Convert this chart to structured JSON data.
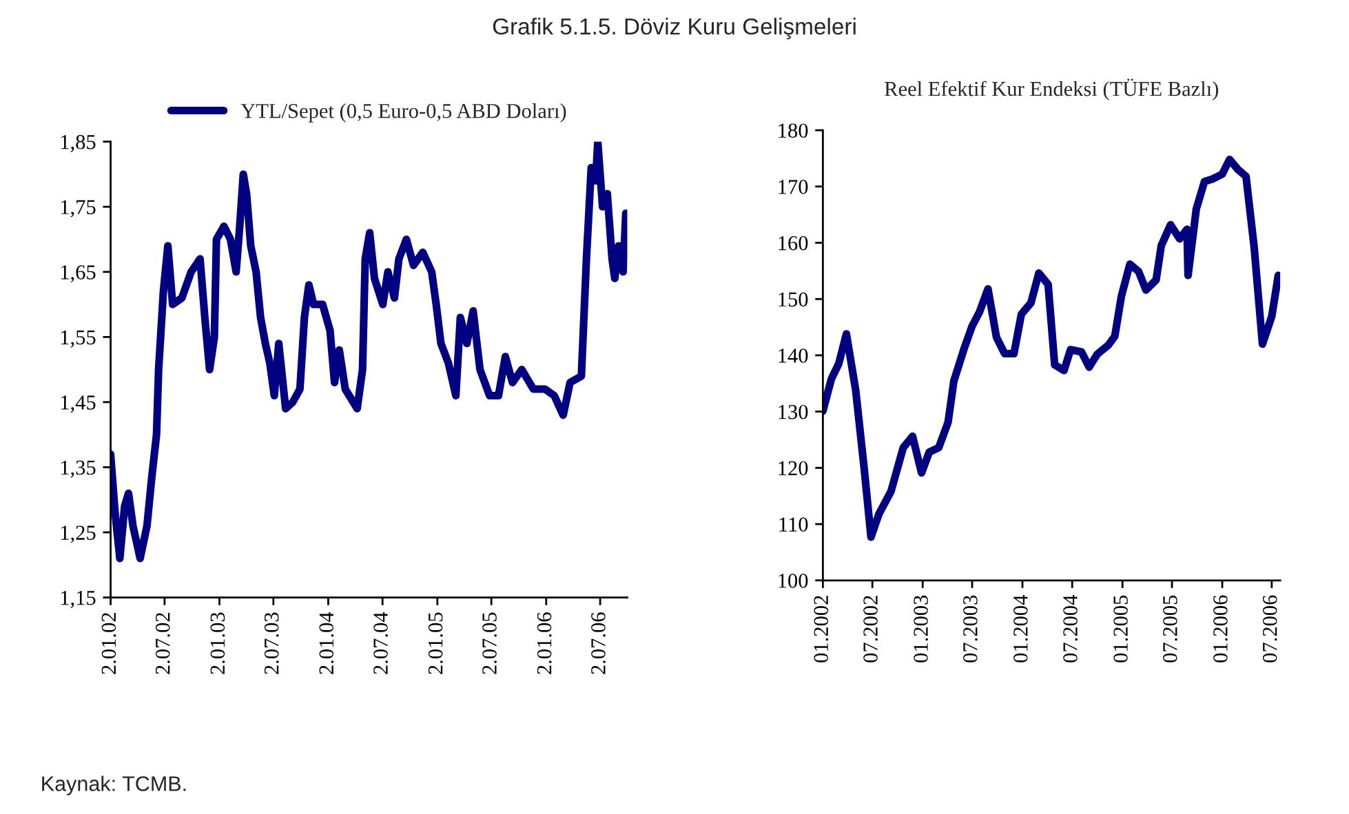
{
  "chart_data": [
    {
      "type": "line",
      "title": "Grafik 5.1.5. Döviz Kuru Gelişmeleri",
      "annotations": [
        "Kaynak: TCMB."
      ],
      "legend": "top",
      "grid": false,
      "marker": "none",
      "line_style": "solid",
      "xlim": [
        "2002-01-02",
        "2006-10-01"
      ],
      "ylim": [
        1.15,
        1.85
      ],
      "xticks": [
        {
          "value": "2002-01-02",
          "label": "2.01.02"
        },
        {
          "value": "2002-07-02",
          "label": "2.07.02"
        },
        {
          "value": "2003-01-02",
          "label": "2.01.03"
        },
        {
          "value": "2003-07-02",
          "label": "2.07.03"
        },
        {
          "value": "2004-01-02",
          "label": "2.01.04"
        },
        {
          "value": "2004-07-02",
          "label": "2.07.04"
        },
        {
          "value": "2005-01-02",
          "label": "2.01.05"
        },
        {
          "value": "2005-07-02",
          "label": "2.07.05"
        },
        {
          "value": "2006-01-02",
          "label": "2.01.06"
        },
        {
          "value": "2006-07-02",
          "label": "2.07.06"
        }
      ],
      "yticks": [
        {
          "value": 1.15,
          "label": "1,15"
        },
        {
          "value": 1.25,
          "label": "1,25"
        },
        {
          "value": 1.35,
          "label": "1,35"
        },
        {
          "value": 1.45,
          "label": "1,45"
        },
        {
          "value": 1.55,
          "label": "1,55"
        },
        {
          "value": 1.65,
          "label": "1,65"
        },
        {
          "value": 1.75,
          "label": "1,75"
        },
        {
          "value": 1.85,
          "label": "1,85"
        }
      ],
      "series": [
        {
          "name": "YTL/Sepet (0,5 Euro-0,5 ABD Doları)",
          "color": "#000080",
          "x": [
            "2002-01-02",
            "2002-01-17",
            "2002-02-02",
            "2002-02-18",
            "2002-03-03",
            "2002-03-18",
            "2002-04-11",
            "2002-05-04",
            "2002-05-19",
            "2002-06-05",
            "2002-06-12",
            "2002-06-28",
            "2002-07-13",
            "2002-07-29",
            "2002-08-29",
            "2002-09-29",
            "2002-10-29",
            "2002-11-14",
            "2002-11-30",
            "2002-12-16",
            "2002-12-23",
            "2003-01-17",
            "2003-02-08",
            "2003-02-27",
            "2003-03-11",
            "2003-03-23",
            "2003-04-03",
            "2003-04-17",
            "2003-05-05",
            "2003-05-20",
            "2003-06-05",
            "2003-06-20",
            "2003-07-05",
            "2003-07-20",
            "2003-08-12",
            "2003-09-05",
            "2003-09-29",
            "2003-10-14",
            "2003-10-29",
            "2003-11-14",
            "2003-12-14",
            "2004-01-08",
            "2004-01-23",
            "2004-02-08",
            "2004-02-28",
            "2004-04-08",
            "2004-04-26",
            "2004-05-05",
            "2004-05-20",
            "2004-06-05",
            "2004-07-03",
            "2004-07-20",
            "2004-08-11",
            "2004-08-26",
            "2004-09-20",
            "2004-10-14",
            "2004-11-14",
            "2004-12-14",
            "2004-12-29",
            "2005-01-14",
            "2005-02-08",
            "2005-03-05",
            "2005-03-20",
            "2005-04-11",
            "2005-05-02",
            "2005-05-25",
            "2005-06-26",
            "2005-07-26",
            "2005-08-18",
            "2005-09-11",
            "2005-10-12",
            "2005-11-20",
            "2005-12-29",
            "2006-01-29",
            "2006-02-28",
            "2006-03-23",
            "2006-04-30",
            "2006-05-17",
            "2006-06-02",
            "2006-06-17",
            "2006-06-24",
            "2006-07-10",
            "2006-07-26",
            "2006-08-11",
            "2006-08-20",
            "2006-09-02",
            "2006-09-17",
            "2006-09-26",
            "2006-09-30"
          ],
          "values": [
            1.37,
            1.28,
            1.21,
            1.29,
            1.31,
            1.26,
            1.21,
            1.26,
            1.33,
            1.4,
            1.5,
            1.62,
            1.69,
            1.6,
            1.61,
            1.65,
            1.67,
            1.58,
            1.5,
            1.55,
            1.7,
            1.72,
            1.7,
            1.65,
            1.72,
            1.8,
            1.77,
            1.69,
            1.65,
            1.58,
            1.54,
            1.51,
            1.46,
            1.54,
            1.44,
            1.45,
            1.47,
            1.58,
            1.63,
            1.6,
            1.6,
            1.56,
            1.48,
            1.53,
            1.47,
            1.44,
            1.5,
            1.67,
            1.71,
            1.64,
            1.6,
            1.65,
            1.61,
            1.67,
            1.7,
            1.66,
            1.68,
            1.65,
            1.6,
            1.54,
            1.51,
            1.46,
            1.58,
            1.54,
            1.59,
            1.5,
            1.46,
            1.46,
            1.52,
            1.48,
            1.5,
            1.47,
            1.47,
            1.46,
            1.43,
            1.48,
            1.49,
            1.67,
            1.81,
            1.79,
            1.85,
            1.75,
            1.77,
            1.67,
            1.64,
            1.69,
            1.65,
            1.74,
            1.69
          ]
        }
      ]
    },
    {
      "type": "line",
      "title": "Reel Efektif Kur Endeksi (TÜFE Bazlı)",
      "grid": false,
      "marker": "none",
      "line_style": "solid",
      "xlim": [
        "2002-01-01",
        "2006-08-01"
      ],
      "ylim": [
        100,
        180
      ],
      "xticks": [
        {
          "value": "2002-01",
          "label": "01.2002"
        },
        {
          "value": "2002-07",
          "label": "07.2002"
        },
        {
          "value": "2003-01",
          "label": "01.2003"
        },
        {
          "value": "2003-07",
          "label": "07.2003"
        },
        {
          "value": "2004-01",
          "label": "01.2004"
        },
        {
          "value": "2004-07",
          "label": "07.2004"
        },
        {
          "value": "2005-01",
          "label": "01.2005"
        },
        {
          "value": "2005-07",
          "label": "07.2005"
        },
        {
          "value": "2006-01",
          "label": "01.2006"
        },
        {
          "value": "2006-07",
          "label": "07.2006"
        }
      ],
      "yticks": [
        100,
        110,
        120,
        130,
        140,
        150,
        160,
        170,
        180
      ],
      "series": [
        {
          "color": "#000080",
          "x": [
            "2002-01-01",
            "2002-02-01",
            "2002-02-28",
            "2002-03-28",
            "2002-05-01",
            "2002-06-01",
            "2002-06-26",
            "2002-07-25",
            "2002-09-07",
            "2002-10-22",
            "2002-11-25",
            "2002-12-28",
            "2003-01-25",
            "2003-03-01",
            "2003-04-04",
            "2003-04-25",
            "2003-06-01",
            "2003-07-01",
            "2003-07-28",
            "2003-08-28",
            "2003-09-28",
            "2003-10-28",
            "2003-12-01",
            "2003-12-28",
            "2004-02-01",
            "2004-03-01",
            "2004-04-04",
            "2004-04-28",
            "2004-06-01",
            "2004-06-25",
            "2004-08-04",
            "2004-09-01",
            "2004-10-01",
            "2004-11-10",
            "2004-12-04",
            "2004-12-28",
            "2005-01-28",
            "2005-03-01",
            "2005-03-28",
            "2005-05-04",
            "2005-05-23",
            "2005-06-26",
            "2005-07-29",
            "2005-08-25",
            "2005-08-29",
            "2005-09-28",
            "2005-10-28",
            "2005-11-25",
            "2006-01-01",
            "2006-01-28",
            "2006-02-28",
            "2006-03-29",
            "2006-04-28",
            "2006-05-28",
            "2006-07-01",
            "2006-07-25"
          ],
          "values": [
            130.1,
            135.8,
            138.5,
            143.8,
            133.8,
            119.9,
            107.7,
            111.8,
            115.8,
            123.6,
            125.6,
            119.1,
            122.8,
            123.6,
            128.1,
            135.4,
            141.1,
            145.2,
            147.7,
            151.8,
            143.2,
            140.3,
            140.3,
            147.3,
            149.3,
            154.6,
            152.6,
            138.3,
            137.3,
            141.0,
            140.6,
            137.9,
            140.2,
            141.8,
            143.4,
            150.5,
            156.2,
            154.9,
            151.6,
            153.4,
            159.5,
            163.2,
            160.7,
            162.4,
            154.2,
            166.0,
            170.9,
            171.3,
            172.2,
            174.8,
            173.0,
            171.8,
            159.1,
            142.0,
            146.9,
            154.2
          ]
        }
      ]
    }
  ]
}
